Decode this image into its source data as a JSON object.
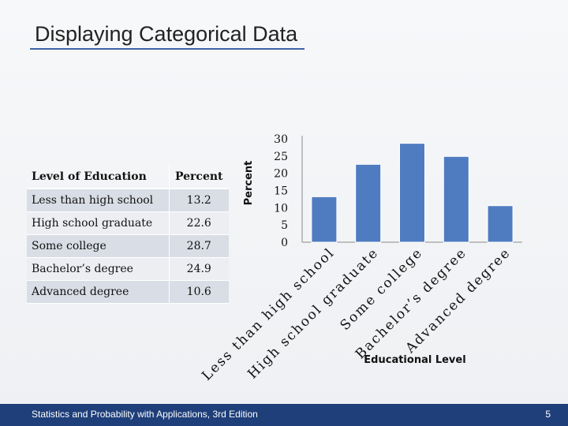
{
  "slide": {
    "title": "Displaying Categorical Data",
    "footer_text": "Statistics and Probability with Applications, 3rd Edition",
    "page_number": "5"
  },
  "table": {
    "headers": [
      "Level of Education",
      "Percent"
    ],
    "rows": [
      [
        "Less than high school",
        "13.2"
      ],
      [
        "High school graduate",
        "22.6"
      ],
      [
        "Some college",
        "28.7"
      ],
      [
        "Bachelor’s degree",
        "24.9"
      ],
      [
        "Advanced degree",
        "10.6"
      ]
    ]
  },
  "chart_data": {
    "type": "bar",
    "categories": [
      "Less than high school",
      "High school graduate",
      "Some college",
      "Bachelor’s degree",
      "Advanced degree"
    ],
    "values": [
      13.2,
      22.6,
      28.7,
      24.9,
      10.6
    ],
    "title": "",
    "xlabel": "Educational Level",
    "ylabel": "Percent",
    "ylim": [
      0,
      30
    ],
    "yticks": [
      0,
      5,
      10,
      15,
      20,
      25,
      30
    ],
    "grid": false,
    "legend": "none",
    "bar_color": "#4f7cc0"
  }
}
